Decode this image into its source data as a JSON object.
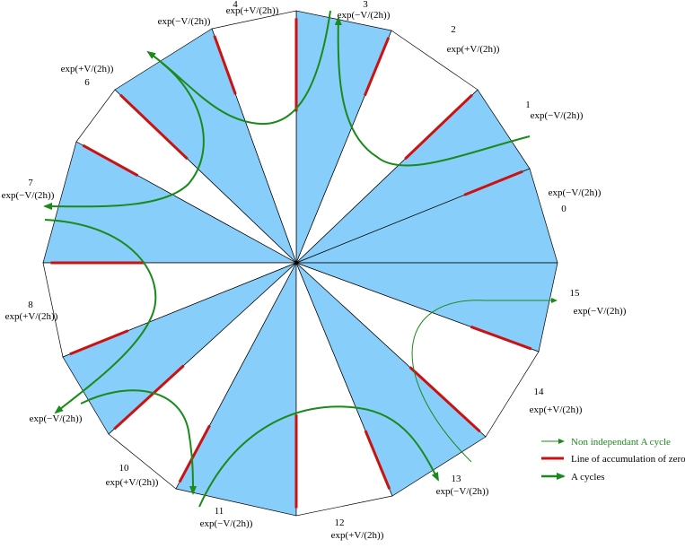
{
  "sectors": [
    {
      "number": "0",
      "formula": "exp(−V/(2h))"
    },
    {
      "number": "1",
      "formula": "exp(−V/(2h))"
    },
    {
      "number": "2",
      "formula": "exp(+V/(2h))"
    },
    {
      "number": "3",
      "formula": "exp(−V/(2h))"
    },
    {
      "number": "4",
      "formula": "exp(+V/(2h))"
    },
    {
      "formula": "exp(−V/(2h))"
    },
    {
      "number": "6",
      "formula": "exp(+V/(2h))"
    },
    {
      "number": "7",
      "formula": "exp(−V/(2h))"
    },
    {
      "number": "8",
      "formula": "exp(+V/(2h))"
    },
    {
      "formula": "exp(−V/(2h))"
    },
    {
      "number": "10",
      "formula": "exp(+V/(2h))"
    },
    {
      "number": "11",
      "formula": "exp(−V/(2h))"
    },
    {
      "number": "12",
      "formula": "exp(+V/(2h))"
    },
    {
      "number": "13",
      "formula": "exp(−V/(2h))"
    },
    {
      "number": "14",
      "formula": "exp(+V/(2h))"
    },
    {
      "number": "15",
      "formula": "exp(−V/(2h))"
    }
  ],
  "legend": [
    "Non independant A cycle",
    "Line of accumulation of zeroes",
    "A cycles"
  ]
}
